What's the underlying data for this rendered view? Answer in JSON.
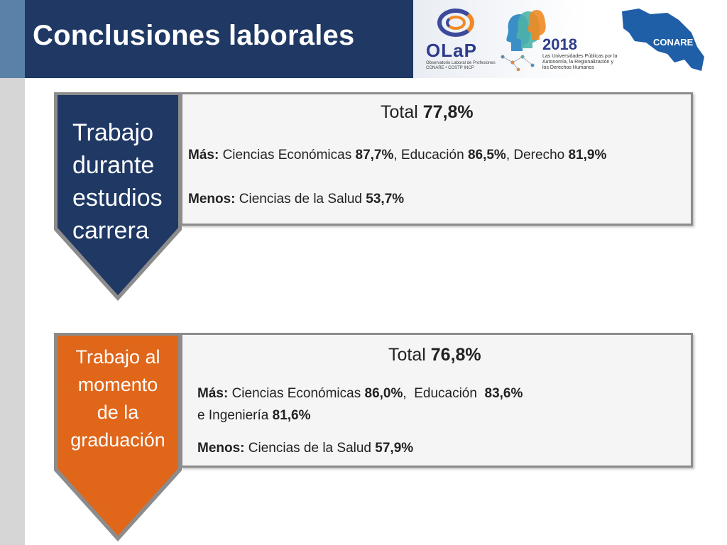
{
  "header": {
    "title": "Conclusiones laborales"
  },
  "logos": {
    "olap_name": "OLaP",
    "olap_subtitle": "Observatorio Laboral de Profesiones CONARE • COSTP INCP",
    "event_year": "2018",
    "event_tagline": "Las Universidades Públicas por la Autonomía, la Regionalización y los Derechos Humanos",
    "conare_name": "CONARE"
  },
  "sections": [
    {
      "label_lines": [
        "Trabajo",
        "durante",
        "estudios",
        "carrera"
      ],
      "shield_color": "#1f3864",
      "total_prefix": "Total ",
      "total_value": "77,8%",
      "mas_label": "Más:",
      "mas_parts": [
        {
          "text": " Ciencias Económicas ",
          "bold": false
        },
        {
          "text": "87,7%",
          "bold": true
        },
        {
          "text": ", Educación ",
          "bold": false
        },
        {
          "text": "86,5%",
          "bold": true
        },
        {
          "text": ", Derecho ",
          "bold": false
        },
        {
          "text": "81,9%",
          "bold": true
        }
      ],
      "menos_label": "Menos:",
      "menos_text": " Ciencias de la Salud ",
      "menos_value": "53,7%"
    },
    {
      "label_lines": [
        "Trabajo al",
        "momento",
        "de la",
        "graduación"
      ],
      "shield_color": "#e0661a",
      "total_prefix": "Total ",
      "total_value": "76,8%",
      "mas_label": "Más:",
      "mas_line1_text1": " Ciencias Económicas ",
      "mas_line1_val1": "86,0%",
      "mas_line1_text2": ",  Educación  ",
      "mas_line1_val2": "83,6%",
      "mas_line2_text": "e Ingeniería ",
      "mas_line2_val": "81,6%",
      "menos_label": "Menos:",
      "menos_text": " Ciencias de la Salud ",
      "menos_value": "57,9%"
    }
  ],
  "colors": {
    "header_bg": "#1f3864",
    "accent_orange": "#e0661a",
    "box_border": "#8c8c8c"
  }
}
